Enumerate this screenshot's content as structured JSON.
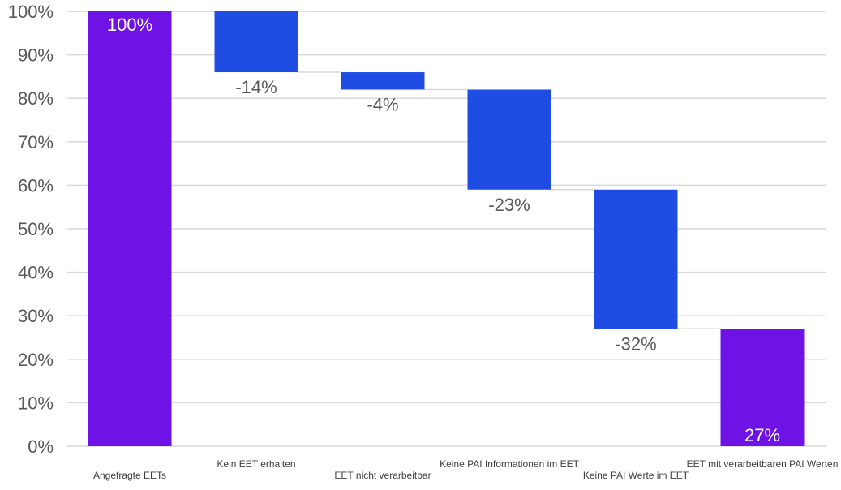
{
  "chart_data": {
    "type": "bar",
    "subtype": "waterfall",
    "title": "",
    "xlabel": "",
    "ylabel": "",
    "ylim": [
      0,
      100
    ],
    "y_ticks": [
      "0%",
      "10%",
      "20%",
      "30%",
      "40%",
      "50%",
      "60%",
      "70%",
      "80%",
      "90%",
      "100%"
    ],
    "grid": true,
    "legend": "none",
    "categories": [
      "Angefragte EETs",
      "Kein EET erhalten",
      "EET nicht verarbeitbar",
      "Keine PAI Informationen im EET",
      "Keine PAI Werte im EET",
      "EET mit verarbeitbaren PAI Werten"
    ],
    "bars": [
      {
        "kind": "total",
        "start": 0,
        "end": 100,
        "label": "100%"
      },
      {
        "kind": "delta",
        "start": 100,
        "end": 86,
        "label": "-14%"
      },
      {
        "kind": "delta",
        "start": 86,
        "end": 82,
        "label": "-4%"
      },
      {
        "kind": "delta",
        "start": 82,
        "end": 59,
        "label": "-23%"
      },
      {
        "kind": "delta",
        "start": 59,
        "end": 27,
        "label": "-32%"
      },
      {
        "kind": "total",
        "start": 0,
        "end": 27,
        "label": "27%"
      }
    ],
    "colors": {
      "total": "#6e12e6",
      "delta": "#1f4ce3",
      "grid": "#d9d9d9",
      "connector": "#d9d9d9",
      "total_label": "#ffffff",
      "delta_label": "#595959"
    }
  }
}
